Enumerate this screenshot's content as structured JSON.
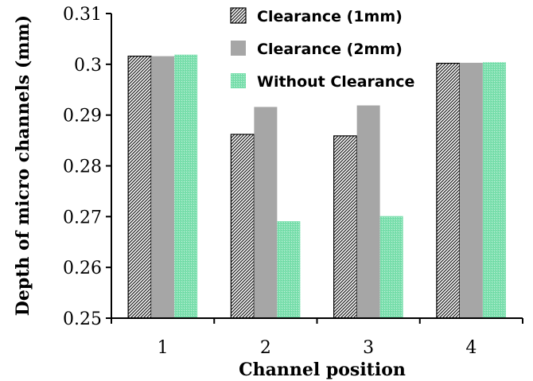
{
  "chart_data": {
    "type": "bar",
    "xlabel": "Channel position",
    "ylabel": "Depth of micro channels (mm)",
    "categories": [
      "1",
      "2",
      "3",
      "4"
    ],
    "ylim": [
      0.25,
      0.31
    ],
    "yticks": [
      "0.25",
      "0.26",
      "0.27",
      "0.28",
      "0.29",
      "0.3",
      "0.31"
    ],
    "legend_position": "top-right",
    "grid": false,
    "series": [
      {
        "name": "Clearance (1mm)",
        "values": [
          0.3016,
          0.2862,
          0.2859,
          0.3002
        ],
        "color": "#333333",
        "fill": "hatch"
      },
      {
        "name": "Clearance (2mm)",
        "values": [
          0.3016,
          0.2916,
          0.2919,
          0.3003
        ],
        "color": "#a6a6a6",
        "fill": "solid"
      },
      {
        "name": "Without Clearance",
        "values": [
          0.3019,
          0.2691,
          0.2701,
          0.3004
        ],
        "color": "#6fd9a6",
        "fill": "dots"
      }
    ]
  }
}
